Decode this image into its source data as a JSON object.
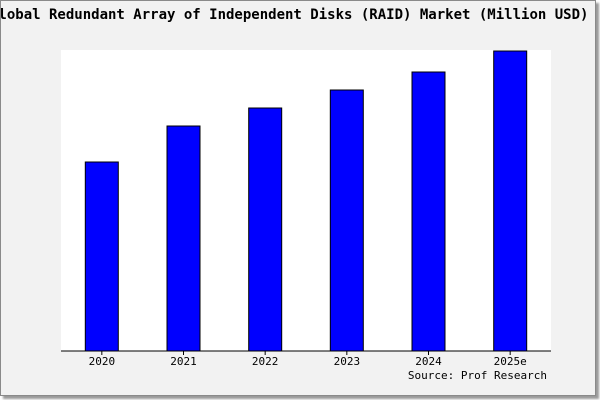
{
  "chart_data": {
    "type": "bar",
    "title": "Global Redundant Array of Independent Disks (RAID) Market (Million USD)",
    "categories": [
      "2020",
      "2021",
      "2022",
      "2023",
      "2024",
      "2025e"
    ],
    "values": [
      63,
      75,
      81,
      87,
      93,
      100
    ],
    "ylim": [
      0,
      100
    ],
    "xlabel": "",
    "ylabel": "",
    "grid": false,
    "legend": "none",
    "bar_color": "#0000ff",
    "source": "Source: Prof Research"
  }
}
